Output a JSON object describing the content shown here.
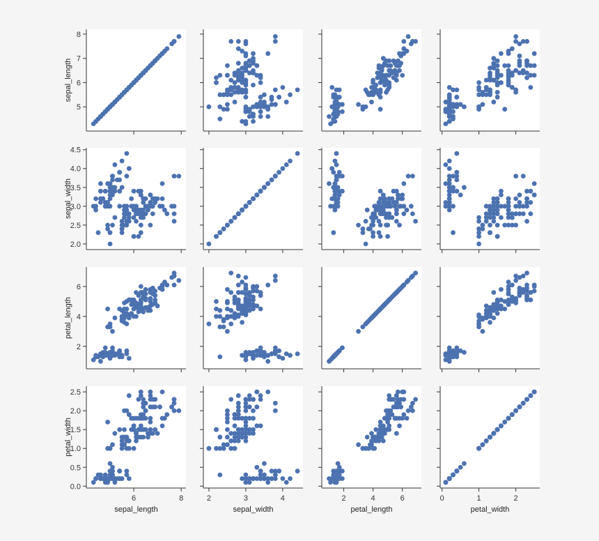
{
  "chart_data": {
    "type": "scatter",
    "variables": [
      "sepal_length",
      "sepal_width",
      "petal_length",
      "petal_width"
    ],
    "marker_color": "#4c72b0",
    "background": "#ffffff",
    "page_background": "#f5f5f5",
    "grid": false,
    "ticks": {
      "sepal_length": {
        "row": [
          "5",
          "6",
          "7",
          "8"
        ],
        "col": [
          "6",
          "8"
        ]
      },
      "sepal_width": {
        "row": [
          "2.0",
          "2.5",
          "3.0",
          "3.5",
          "4.0",
          "4.5"
        ],
        "col": [
          "2",
          "3",
          "4"
        ]
      },
      "petal_length": {
        "row": [
          "2",
          "4",
          "6"
        ],
        "col": [
          "2",
          "4",
          "6"
        ]
      },
      "petal_width": {
        "row": [
          "0.0",
          "0.5",
          "1.0",
          "1.5",
          "2.0",
          "2.5"
        ],
        "col": [
          "0",
          "1",
          "2"
        ]
      }
    },
    "ranges": {
      "sepal_length": [
        4.0,
        8.2
      ],
      "sepal_width": [
        1.85,
        4.55
      ],
      "petal_length": [
        0.5,
        7.3
      ],
      "petal_width": [
        -0.05,
        2.65
      ]
    },
    "records": [
      [
        5.1,
        3.5,
        1.4,
        0.2
      ],
      [
        4.9,
        3.0,
        1.4,
        0.2
      ],
      [
        4.7,
        3.2,
        1.3,
        0.2
      ],
      [
        4.6,
        3.1,
        1.5,
        0.2
      ],
      [
        5.0,
        3.6,
        1.4,
        0.2
      ],
      [
        5.4,
        3.9,
        1.7,
        0.4
      ],
      [
        4.6,
        3.4,
        1.4,
        0.3
      ],
      [
        5.0,
        3.4,
        1.5,
        0.2
      ],
      [
        4.4,
        2.9,
        1.4,
        0.2
      ],
      [
        4.9,
        3.1,
        1.5,
        0.1
      ],
      [
        5.4,
        3.7,
        1.5,
        0.2
      ],
      [
        4.8,
        3.4,
        1.6,
        0.2
      ],
      [
        4.8,
        3.0,
        1.4,
        0.1
      ],
      [
        4.3,
        3.0,
        1.1,
        0.1
      ],
      [
        5.8,
        4.0,
        1.2,
        0.2
      ],
      [
        5.7,
        4.4,
        1.5,
        0.4
      ],
      [
        5.4,
        3.9,
        1.3,
        0.4
      ],
      [
        5.1,
        3.5,
        1.4,
        0.3
      ],
      [
        5.7,
        3.8,
        1.7,
        0.3
      ],
      [
        5.1,
        3.8,
        1.5,
        0.3
      ],
      [
        5.4,
        3.4,
        1.7,
        0.2
      ],
      [
        5.1,
        3.7,
        1.5,
        0.4
      ],
      [
        4.6,
        3.6,
        1.0,
        0.2
      ],
      [
        5.1,
        3.3,
        1.7,
        0.5
      ],
      [
        4.8,
        3.4,
        1.9,
        0.2
      ],
      [
        5.0,
        3.0,
        1.6,
        0.2
      ],
      [
        5.0,
        3.4,
        1.6,
        0.4
      ],
      [
        5.2,
        3.5,
        1.5,
        0.2
      ],
      [
        5.2,
        3.4,
        1.4,
        0.2
      ],
      [
        4.7,
        3.2,
        1.6,
        0.2
      ],
      [
        4.8,
        3.1,
        1.6,
        0.2
      ],
      [
        5.4,
        3.4,
        1.5,
        0.4
      ],
      [
        5.2,
        4.1,
        1.5,
        0.1
      ],
      [
        5.5,
        4.2,
        1.4,
        0.2
      ],
      [
        4.9,
        3.1,
        1.5,
        0.2
      ],
      [
        5.0,
        3.2,
        1.2,
        0.2
      ],
      [
        5.5,
        3.5,
        1.3,
        0.2
      ],
      [
        4.9,
        3.6,
        1.4,
        0.1
      ],
      [
        4.4,
        3.0,
        1.3,
        0.2
      ],
      [
        5.1,
        3.4,
        1.5,
        0.2
      ],
      [
        5.0,
        3.5,
        1.3,
        0.3
      ],
      [
        4.5,
        2.3,
        1.3,
        0.3
      ],
      [
        4.4,
        3.2,
        1.3,
        0.2
      ],
      [
        5.0,
        3.5,
        1.6,
        0.6
      ],
      [
        5.1,
        3.8,
        1.9,
        0.4
      ],
      [
        4.8,
        3.0,
        1.4,
        0.3
      ],
      [
        5.1,
        3.8,
        1.6,
        0.2
      ],
      [
        4.6,
        3.2,
        1.4,
        0.2
      ],
      [
        5.3,
        3.7,
        1.5,
        0.2
      ],
      [
        5.0,
        3.3,
        1.4,
        0.2
      ],
      [
        7.0,
        3.2,
        4.7,
        1.4
      ],
      [
        6.4,
        3.2,
        4.5,
        1.5
      ],
      [
        6.9,
        3.1,
        4.9,
        1.5
      ],
      [
        5.5,
        2.3,
        4.0,
        1.3
      ],
      [
        6.5,
        2.8,
        4.6,
        1.5
      ],
      [
        5.7,
        2.8,
        4.5,
        1.3
      ],
      [
        6.3,
        3.3,
        4.7,
        1.6
      ],
      [
        4.9,
        2.4,
        3.3,
        1.0
      ],
      [
        6.6,
        2.9,
        4.6,
        1.3
      ],
      [
        5.2,
        2.7,
        3.9,
        1.4
      ],
      [
        5.0,
        2.0,
        3.5,
        1.0
      ],
      [
        5.9,
        3.0,
        4.2,
        1.5
      ],
      [
        6.0,
        2.2,
        4.0,
        1.0
      ],
      [
        6.1,
        2.9,
        4.7,
        1.4
      ],
      [
        5.6,
        2.9,
        3.6,
        1.3
      ],
      [
        6.7,
        3.1,
        4.4,
        1.4
      ],
      [
        5.6,
        3.0,
        4.5,
        1.5
      ],
      [
        5.8,
        2.7,
        4.1,
        1.0
      ],
      [
        6.2,
        2.2,
        4.5,
        1.5
      ],
      [
        5.6,
        2.5,
        3.9,
        1.1
      ],
      [
        5.9,
        3.2,
        4.8,
        1.8
      ],
      [
        6.1,
        2.8,
        4.0,
        1.3
      ],
      [
        6.3,
        2.5,
        4.9,
        1.5
      ],
      [
        6.1,
        2.8,
        4.7,
        1.2
      ],
      [
        6.4,
        2.9,
        4.3,
        1.3
      ],
      [
        6.6,
        3.0,
        4.4,
        1.4
      ],
      [
        6.8,
        2.8,
        4.8,
        1.4
      ],
      [
        6.7,
        3.0,
        5.0,
        1.7
      ],
      [
        6.0,
        2.9,
        4.5,
        1.5
      ],
      [
        5.7,
        2.6,
        3.5,
        1.0
      ],
      [
        5.5,
        2.4,
        3.8,
        1.1
      ],
      [
        5.5,
        2.4,
        3.7,
        1.0
      ],
      [
        5.8,
        2.7,
        3.9,
        1.2
      ],
      [
        6.0,
        2.7,
        5.1,
        1.6
      ],
      [
        5.4,
        3.0,
        4.5,
        1.5
      ],
      [
        6.0,
        3.4,
        4.5,
        1.6
      ],
      [
        6.7,
        3.1,
        4.7,
        1.5
      ],
      [
        6.3,
        2.3,
        4.4,
        1.3
      ],
      [
        5.6,
        3.0,
        4.1,
        1.3
      ],
      [
        5.5,
        2.5,
        4.0,
        1.3
      ],
      [
        5.5,
        2.6,
        4.4,
        1.2
      ],
      [
        6.1,
        3.0,
        4.6,
        1.4
      ],
      [
        5.8,
        2.6,
        4.0,
        1.2
      ],
      [
        5.0,
        2.3,
        3.3,
        1.0
      ],
      [
        5.6,
        2.7,
        4.2,
        1.3
      ],
      [
        5.7,
        3.0,
        4.2,
        1.2
      ],
      [
        5.7,
        2.9,
        4.2,
        1.3
      ],
      [
        6.2,
        2.9,
        4.3,
        1.3
      ],
      [
        5.1,
        2.5,
        3.0,
        1.1
      ],
      [
        5.7,
        2.8,
        4.1,
        1.3
      ],
      [
        6.3,
        3.3,
        6.0,
        2.5
      ],
      [
        5.8,
        2.7,
        5.1,
        1.9
      ],
      [
        7.1,
        3.0,
        5.9,
        2.1
      ],
      [
        6.3,
        2.9,
        5.6,
        1.8
      ],
      [
        6.5,
        3.0,
        5.8,
        2.2
      ],
      [
        7.6,
        3.0,
        6.6,
        2.1
      ],
      [
        4.9,
        2.5,
        4.5,
        1.7
      ],
      [
        7.3,
        2.9,
        6.3,
        1.8
      ],
      [
        6.7,
        2.5,
        5.8,
        1.8
      ],
      [
        7.2,
        3.6,
        6.1,
        2.5
      ],
      [
        6.5,
        3.2,
        5.1,
        2.0
      ],
      [
        6.4,
        2.7,
        5.3,
        1.9
      ],
      [
        6.8,
        3.0,
        5.5,
        2.1
      ],
      [
        5.7,
        2.5,
        5.0,
        2.0
      ],
      [
        5.8,
        2.8,
        5.1,
        2.4
      ],
      [
        6.4,
        3.2,
        5.3,
        2.3
      ],
      [
        6.5,
        3.0,
        5.5,
        1.8
      ],
      [
        7.7,
        3.8,
        6.7,
        2.2
      ],
      [
        7.7,
        2.6,
        6.9,
        2.3
      ],
      [
        6.0,
        2.2,
        5.0,
        1.5
      ],
      [
        6.9,
        3.2,
        5.7,
        2.3
      ],
      [
        5.6,
        2.8,
        4.9,
        2.0
      ],
      [
        7.7,
        2.8,
        6.7,
        2.0
      ],
      [
        6.3,
        2.7,
        4.9,
        1.8
      ],
      [
        6.7,
        3.3,
        5.7,
        2.1
      ],
      [
        7.2,
        3.2,
        6.0,
        1.8
      ],
      [
        6.2,
        2.8,
        4.8,
        1.8
      ],
      [
        6.1,
        3.0,
        4.9,
        1.8
      ],
      [
        6.4,
        2.8,
        5.6,
        2.1
      ],
      [
        7.2,
        3.0,
        5.8,
        1.6
      ],
      [
        7.4,
        2.8,
        6.1,
        1.9
      ],
      [
        7.9,
        3.8,
        6.4,
        2.0
      ],
      [
        6.4,
        2.8,
        5.6,
        2.2
      ],
      [
        6.3,
        2.8,
        5.1,
        1.5
      ],
      [
        6.1,
        2.6,
        5.6,
        1.4
      ],
      [
        7.7,
        3.0,
        6.1,
        2.3
      ],
      [
        6.3,
        3.4,
        5.6,
        2.4
      ],
      [
        6.4,
        3.1,
        5.5,
        1.8
      ],
      [
        6.0,
        3.0,
        4.8,
        1.8
      ],
      [
        6.9,
        3.1,
        5.4,
        2.1
      ],
      [
        6.7,
        3.1,
        5.6,
        2.4
      ],
      [
        6.9,
        3.1,
        5.1,
        2.3
      ],
      [
        5.8,
        2.7,
        5.1,
        1.9
      ],
      [
        6.8,
        3.2,
        5.9,
        2.3
      ],
      [
        6.7,
        3.3,
        5.7,
        2.5
      ],
      [
        6.7,
        3.0,
        5.2,
        2.3
      ],
      [
        6.3,
        2.5,
        5.0,
        1.9
      ],
      [
        6.5,
        3.0,
        5.2,
        2.0
      ],
      [
        6.2,
        3.4,
        5.4,
        2.3
      ],
      [
        5.9,
        3.0,
        5.1,
        1.8
      ]
    ]
  }
}
